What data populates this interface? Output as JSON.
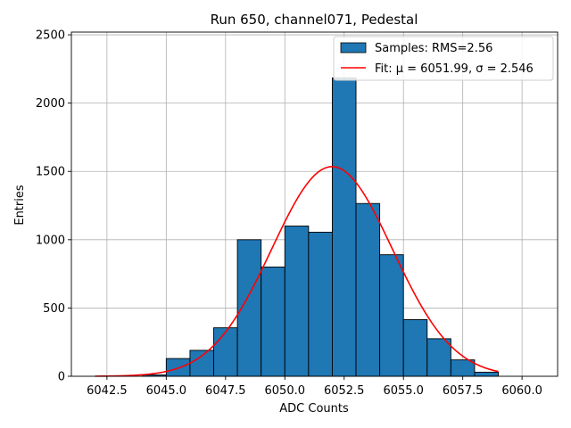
{
  "chart_data": {
    "type": "bar",
    "title": "Run 650, channel071, Pedestal",
    "xlabel": "ADC Counts",
    "ylabel": "Entries",
    "xlim": [
      6041.0,
      6061.5
    ],
    "ylim": [
      0,
      2520
    ],
    "grid": true,
    "legend_placement": "top-right",
    "xticks": [
      6042.5,
      6045.0,
      6047.5,
      6050.0,
      6052.5,
      6055.0,
      6057.5,
      6060.0
    ],
    "xtick_labels": [
      "6042.5",
      "6045.0",
      "6047.5",
      "6050.0",
      "6052.5",
      "6055.0",
      "6057.5",
      "6060.0"
    ],
    "yticks": [
      0,
      500,
      1000,
      1500,
      2000,
      2500
    ],
    "ytick_labels": [
      "0",
      "500",
      "1000",
      "1500",
      "2000",
      "2500"
    ],
    "bar_color": "#1f77b4",
    "fit_color": "#ff0000",
    "series": [
      {
        "name": "Samples: RMS=2.56",
        "kind": "histogram",
        "bins": [
          {
            "x0": 6044,
            "x1": 6045,
            "value": 10
          },
          {
            "x0": 6045,
            "x1": 6046,
            "value": 130
          },
          {
            "x0": 6046,
            "x1": 6047,
            "value": 190
          },
          {
            "x0": 6047,
            "x1": 6048,
            "value": 355
          },
          {
            "x0": 6048,
            "x1": 6049,
            "value": 1000
          },
          {
            "x0": 6049,
            "x1": 6050,
            "value": 800
          },
          {
            "x0": 6050,
            "x1": 6051,
            "value": 1100
          },
          {
            "x0": 6051,
            "x1": 6052,
            "value": 1055
          },
          {
            "x0": 6052,
            "x1": 6053,
            "value": 2185
          },
          {
            "x0": 6053,
            "x1": 6054,
            "value": 1265
          },
          {
            "x0": 6054,
            "x1": 6055,
            "value": 890
          },
          {
            "x0": 6055,
            "x1": 6056,
            "value": 415
          },
          {
            "x0": 6056,
            "x1": 6057,
            "value": 275
          },
          {
            "x0": 6057,
            "x1": 6058,
            "value": 120
          },
          {
            "x0": 6058,
            "x1": 6059,
            "value": 30
          }
        ]
      },
      {
        "name": "Fit: μ = 6051.99, σ = 2.546",
        "kind": "gaussian",
        "mu": 6051.99,
        "sigma": 2.546,
        "amplitude": 1535,
        "x_range": [
          6042,
          6059
        ]
      }
    ]
  }
}
